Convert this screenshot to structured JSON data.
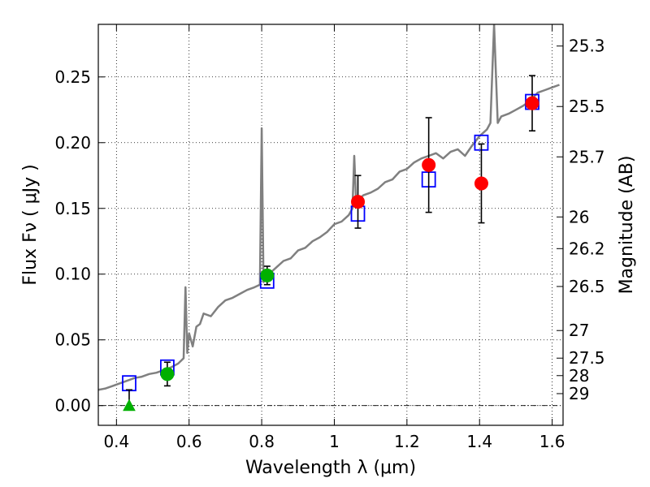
{
  "chart_data": {
    "type": "scatter",
    "title": "",
    "xlabel": "Wavelength  λ (μm)",
    "ylabel": "Flux  Fν  ( μJy )",
    "y2label": "Magnitude (AB)",
    "xlim": [
      0.35,
      1.63
    ],
    "ylim": [
      -0.015,
      0.29
    ],
    "grid": true,
    "x_ticks": [
      0.4,
      0.6,
      0.8,
      1.0,
      1.2,
      1.4,
      1.6
    ],
    "x_tick_labels": [
      "0.4",
      "0.6",
      "0.8",
      "1",
      "1.2",
      "1.4",
      "1.6"
    ],
    "y_ticks": [
      0.0,
      0.05,
      0.1,
      0.15,
      0.2,
      0.25
    ],
    "y_tick_labels": [
      "0.00",
      "0.05",
      "0.10",
      "0.15",
      "0.20",
      "0.25"
    ],
    "y2_ticks": [
      {
        "label": "25.3",
        "flux": 0.2735
      },
      {
        "label": "25.5",
        "flux": 0.2275
      },
      {
        "label": "25.7",
        "flux": 0.1892
      },
      {
        "label": "26",
        "flux": 0.1435
      },
      {
        "label": "26.2",
        "flux": 0.1194
      },
      {
        "label": "26.5",
        "flux": 0.0906
      },
      {
        "label": "27",
        "flux": 0.0571
      },
      {
        "label": "27.5",
        "flux": 0.0361
      },
      {
        "label": "28",
        "flux": 0.0228
      },
      {
        "label": "29",
        "flux": 0.0091
      }
    ],
    "colors": {
      "model": "#808080",
      "model_points": "#0000ff",
      "detection_green": "#00b000",
      "detection_red": "#ff0000",
      "errorbar": "#000000",
      "zero_line": "#000000"
    },
    "series": [
      {
        "marker": "model-spectrum-line",
        "x": [
          0.35,
          0.37,
          0.39,
          0.41,
          0.43,
          0.45,
          0.47,
          0.49,
          0.51,
          0.53,
          0.55,
          0.57,
          0.585,
          0.59,
          0.595,
          0.6,
          0.61,
          0.62,
          0.63,
          0.64,
          0.66,
          0.68,
          0.7,
          0.72,
          0.74,
          0.76,
          0.78,
          0.795,
          0.8,
          0.805,
          0.82,
          0.84,
          0.86,
          0.88,
          0.9,
          0.92,
          0.94,
          0.96,
          0.98,
          1.0,
          1.02,
          1.04,
          1.05,
          1.055,
          1.06,
          1.08,
          1.1,
          1.12,
          1.14,
          1.16,
          1.18,
          1.2,
          1.22,
          1.24,
          1.26,
          1.28,
          1.3,
          1.32,
          1.34,
          1.36,
          1.38,
          1.4,
          1.42,
          1.43,
          1.44,
          1.45,
          1.46,
          1.48,
          1.5,
          1.52,
          1.54,
          1.56,
          1.58,
          1.6,
          1.62
        ],
        "y": [
          0.012,
          0.013,
          0.015,
          0.017,
          0.019,
          0.021,
          0.022,
          0.024,
          0.025,
          0.027,
          0.029,
          0.032,
          0.036,
          0.09,
          0.04,
          0.055,
          0.045,
          0.06,
          0.062,
          0.07,
          0.068,
          0.075,
          0.08,
          0.082,
          0.085,
          0.088,
          0.09,
          0.092,
          0.211,
          0.094,
          0.1,
          0.105,
          0.11,
          0.112,
          0.118,
          0.12,
          0.125,
          0.128,
          0.132,
          0.138,
          0.14,
          0.145,
          0.15,
          0.19,
          0.155,
          0.16,
          0.162,
          0.165,
          0.17,
          0.172,
          0.178,
          0.18,
          0.185,
          0.188,
          0.19,
          0.192,
          0.188,
          0.193,
          0.195,
          0.19,
          0.198,
          0.205,
          0.21,
          0.215,
          0.29,
          0.215,
          0.22,
          0.222,
          0.225,
          0.228,
          0.232,
          0.238,
          0.24,
          0.242,
          0.244
        ]
      },
      {
        "marker": "open-blue-square",
        "x": [
          0.435,
          0.54,
          0.815,
          1.065,
          1.26,
          1.405,
          1.545
        ],
        "y": [
          0.017,
          0.029,
          0.095,
          0.146,
          0.172,
          0.2,
          0.231
        ]
      },
      {
        "marker": "green-circle",
        "x": [
          0.54,
          0.815
        ],
        "y": [
          0.024,
          0.099
        ],
        "yerr": [
          0.009,
          0.007
        ]
      },
      {
        "marker": "red-circle",
        "x": [
          1.065,
          1.26,
          1.405,
          1.545
        ],
        "y": [
          0.155,
          0.183,
          0.169,
          0.23
        ],
        "yerr": [
          0.02,
          0.036,
          0.03,
          0.021
        ]
      },
      {
        "marker": "green-triangle-upper-limit",
        "x": [
          0.435
        ],
        "y": [
          0.0
        ],
        "yerr_up": [
          0.012
        ]
      }
    ]
  }
}
